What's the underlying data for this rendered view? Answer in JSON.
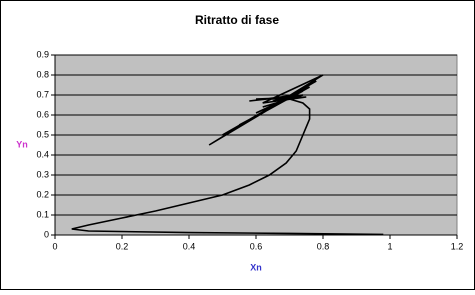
{
  "chart_data": {
    "type": "line",
    "title": "Ritratto di fase",
    "x_label": "Xn",
    "y_label": "Yn",
    "x": [
      0.98,
      0.7,
      0.4,
      0.1,
      0.05,
      0.1,
      0.2,
      0.3,
      0.4,
      0.5,
      0.58,
      0.64,
      0.69,
      0.72,
      0.74,
      0.76,
      0.76,
      0.74,
      0.7,
      0.6,
      0.75,
      0.62,
      0.8,
      0.46,
      0.78,
      0.5,
      0.76,
      0.55,
      0.74,
      0.6,
      0.72,
      0.58,
      0.74,
      0.62,
      0.72,
      0.65,
      0.7,
      0.68
    ],
    "series": [
      {
        "name": "Yn",
        "color": "#000000",
        "values": [
          0.003,
          0.008,
          0.012,
          0.02,
          0.03,
          0.05,
          0.085,
          0.12,
          0.16,
          0.2,
          0.25,
          0.3,
          0.36,
          0.42,
          0.5,
          0.58,
          0.63,
          0.66,
          0.68,
          0.68,
          0.69,
          0.66,
          0.8,
          0.45,
          0.77,
          0.5,
          0.74,
          0.55,
          0.72,
          0.61,
          0.7,
          0.67,
          0.7,
          0.64,
          0.69,
          0.67,
          0.68,
          0.68
        ]
      }
    ],
    "xlim": [
      0,
      1.2
    ],
    "xticks": [
      0,
      0.2,
      0.4,
      0.6,
      0.8,
      1,
      1.2
    ],
    "ylim": [
      0,
      0.9
    ],
    "yticks": [
      0,
      0.1,
      0.2,
      0.3,
      0.4,
      0.5,
      0.6,
      0.7,
      0.8,
      0.9
    ],
    "grid": true,
    "plot_color": "#c0c0c0",
    "x_label_color": "#3333cc",
    "y_label_color": "#cc33cc"
  }
}
